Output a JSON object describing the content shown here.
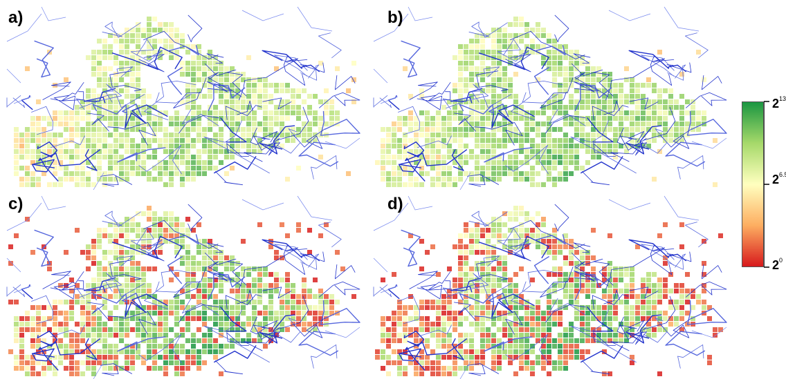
{
  "figure": {
    "panels": [
      {
        "id": "a",
        "label": "a)",
        "style": "balanced"
      },
      {
        "id": "b",
        "label": "b)",
        "style": "balanced-green"
      },
      {
        "id": "c",
        "label": "c)",
        "style": "extreme"
      },
      {
        "id": "d",
        "label": "d)",
        "style": "extreme-dark"
      }
    ],
    "colorbar": {
      "colors": [
        "#d7191c",
        "#fdae61",
        "#ffffbf",
        "#a6d96a",
        "#1a9641"
      ],
      "ticks": [
        {
          "base": "2",
          "exp": "13"
        },
        {
          "base": "2",
          "exp": "6.5"
        },
        {
          "base": "2",
          "exp": "0"
        }
      ]
    },
    "colors": {
      "road": "#2233cc",
      "road_light": "#5566dd",
      "cell_low": "#d7191c",
      "cell_high": "#1a9641"
    }
  }
}
